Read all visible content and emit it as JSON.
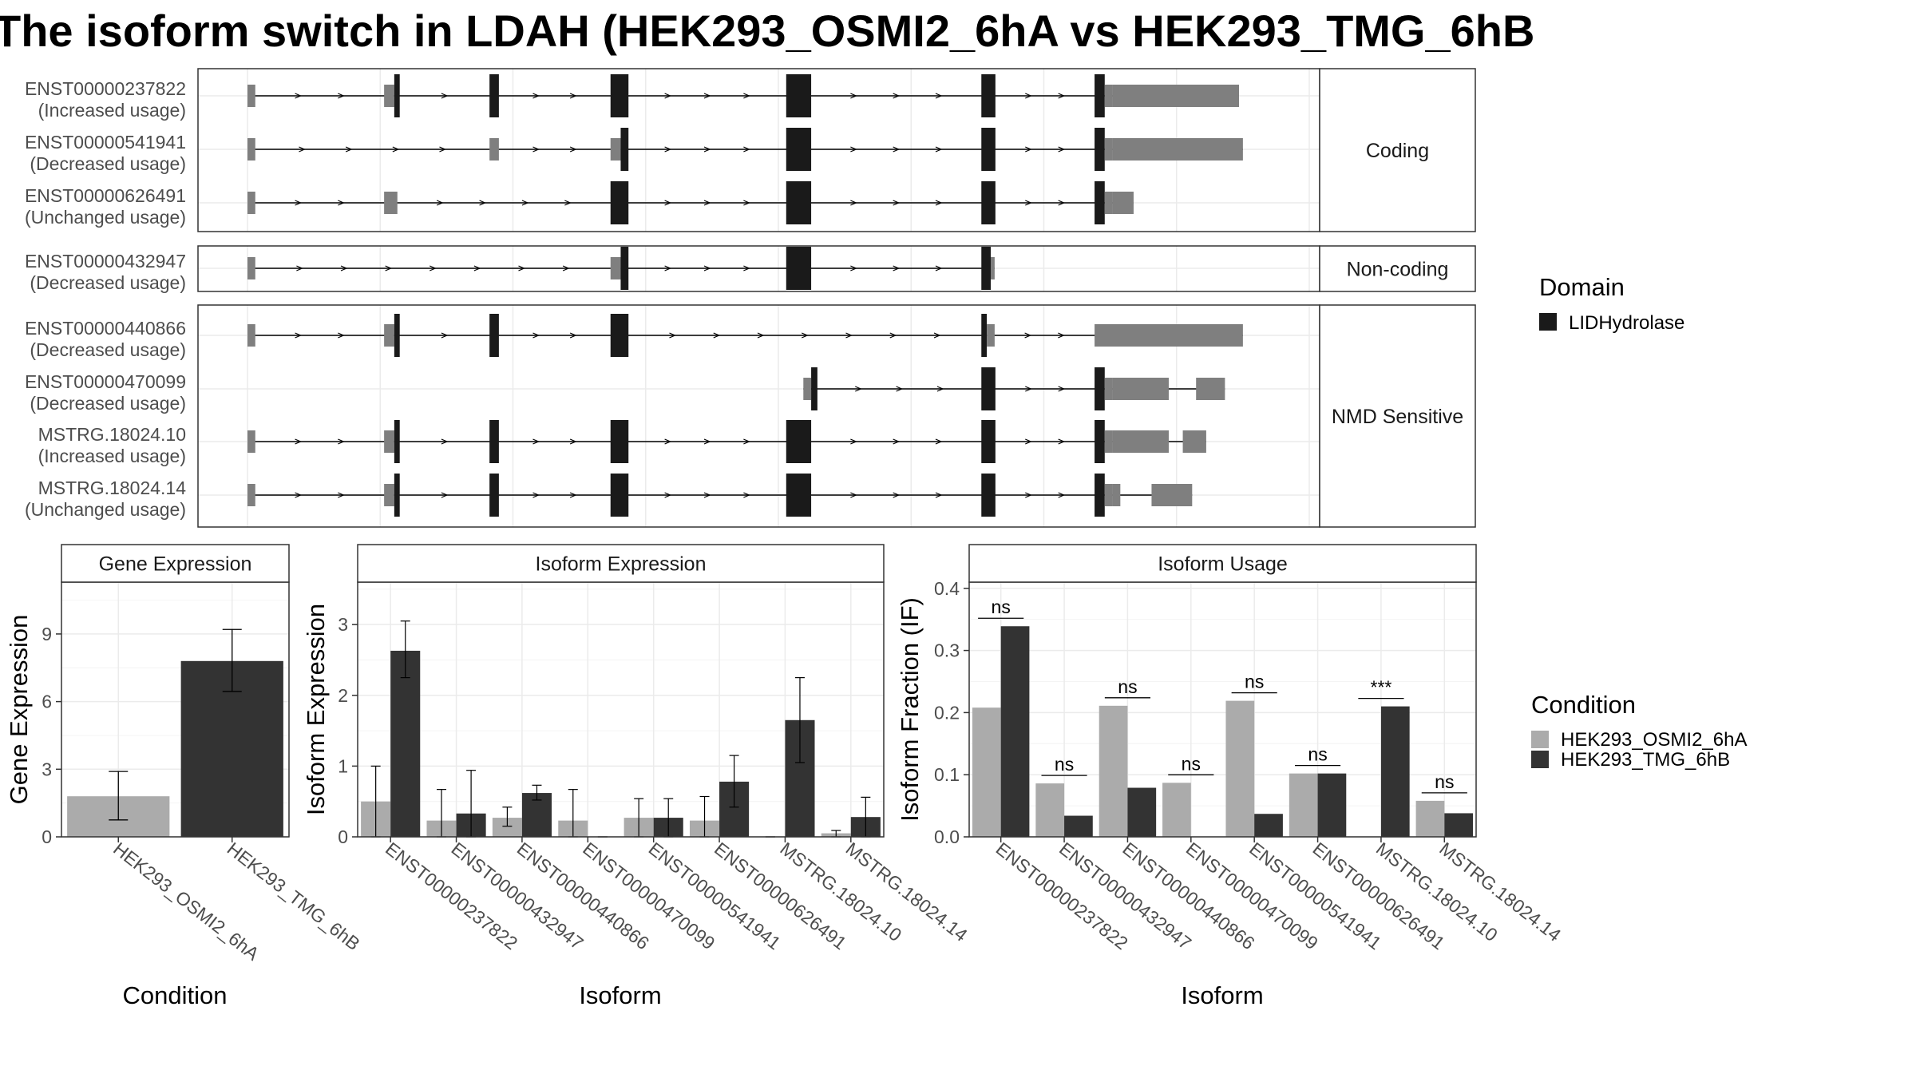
{
  "title": "The isoform switch in LDAH (HEK293_OSMI2_6hA vs HEK293_TMG_6hB",
  "colors": {
    "domain": "#1a1a1a",
    "utr": "#7f7f7f",
    "condition_a": "#ababab",
    "condition_b": "#333333",
    "grid": "#ebebeb",
    "strip_text": "#1a1a1a"
  },
  "isoform_structures": {
    "axis_max": 1360,
    "groups": [
      {
        "label": "Coding",
        "transcripts": [
          {
            "id": "ENST00000237822",
            "usage": "(Increased usage)",
            "exons": [
              [
                0,
                10,
                "utr"
              ],
              [
                175,
                188,
                "utr"
              ],
              [
                188,
                195,
                "domain"
              ],
              [
                310,
                322,
                "domain"
              ],
              [
                465,
                488,
                "domain"
              ],
              [
                690,
                722,
                "domain"
              ],
              [
                940,
                958,
                "domain"
              ],
              [
                1085,
                1098,
                "domain"
              ],
              [
                1098,
                1108,
                "utr"
              ],
              [
                1108,
                1270,
                "utr"
              ]
            ]
          },
          {
            "id": "ENST00000541941",
            "usage": "(Decreased usage)",
            "exons": [
              [
                0,
                10,
                "utr"
              ],
              [
                310,
                322,
                "utr"
              ],
              [
                465,
                478,
                "utr"
              ],
              [
                478,
                488,
                "domain"
              ],
              [
                690,
                722,
                "domain"
              ],
              [
                940,
                958,
                "domain"
              ],
              [
                1085,
                1098,
                "domain"
              ],
              [
                1098,
                1108,
                "utr"
              ],
              [
                1108,
                1275,
                "utr"
              ]
            ]
          },
          {
            "id": "ENST00000626491",
            "usage": "(Unchanged usage)",
            "exons": [
              [
                0,
                10,
                "utr"
              ],
              [
                175,
                192,
                "utr"
              ],
              [
                465,
                488,
                "domain"
              ],
              [
                690,
                722,
                "domain"
              ],
              [
                940,
                958,
                "domain"
              ],
              [
                1085,
                1098,
                "domain"
              ],
              [
                1098,
                1108,
                "utr"
              ],
              [
                1108,
                1135,
                "utr"
              ]
            ]
          }
        ]
      },
      {
        "label": "Non-coding",
        "transcripts": [
          {
            "id": "ENST00000432947",
            "usage": "(Decreased usage)",
            "exons": [
              [
                0,
                10,
                "utr"
              ],
              [
                465,
                478,
                "utr"
              ],
              [
                478,
                488,
                "domain"
              ],
              [
                690,
                722,
                "domain"
              ],
              [
                940,
                952,
                "domain"
              ],
              [
                952,
                957,
                "utr"
              ]
            ]
          }
        ]
      },
      {
        "label": "NMD Sensitive",
        "transcripts": [
          {
            "id": "ENST00000440866",
            "usage": "(Decreased usage)",
            "exons": [
              [
                0,
                10,
                "utr"
              ],
              [
                175,
                188,
                "utr"
              ],
              [
                188,
                195,
                "domain"
              ],
              [
                310,
                322,
                "domain"
              ],
              [
                465,
                488,
                "domain"
              ],
              [
                940,
                947,
                "domain"
              ],
              [
                947,
                957,
                "utr"
              ],
              [
                1085,
                1275,
                "utr"
              ]
            ]
          },
          {
            "id": "ENST00000470099",
            "usage": "(Decreased usage)",
            "exons": [
              [
                712,
                722,
                "utr"
              ],
              [
                722,
                730,
                "domain"
              ],
              [
                940,
                958,
                "domain"
              ],
              [
                1085,
                1098,
                "domain"
              ],
              [
                1098,
                1108,
                "utr"
              ],
              [
                1108,
                1180,
                "utr"
              ],
              [
                1215,
                1252,
                "utr"
              ]
            ]
          },
          {
            "id": "MSTRG.18024.10",
            "usage": "(Increased usage)",
            "exons": [
              [
                0,
                10,
                "utr"
              ],
              [
                175,
                188,
                "utr"
              ],
              [
                188,
                195,
                "domain"
              ],
              [
                310,
                322,
                "domain"
              ],
              [
                465,
                488,
                "domain"
              ],
              [
                690,
                722,
                "domain"
              ],
              [
                940,
                958,
                "domain"
              ],
              [
                1085,
                1098,
                "domain"
              ],
              [
                1098,
                1108,
                "utr"
              ],
              [
                1108,
                1180,
                "utr"
              ],
              [
                1198,
                1228,
                "utr"
              ]
            ]
          },
          {
            "id": "MSTRG.18024.14",
            "usage": "(Unchanged usage)",
            "exons": [
              [
                0,
                10,
                "utr"
              ],
              [
                175,
                188,
                "utr"
              ],
              [
                188,
                195,
                "domain"
              ],
              [
                310,
                322,
                "domain"
              ],
              [
                465,
                488,
                "domain"
              ],
              [
                690,
                722,
                "domain"
              ],
              [
                940,
                958,
                "domain"
              ],
              [
                1085,
                1098,
                "domain"
              ],
              [
                1098,
                1108,
                "utr"
              ],
              [
                1108,
                1118,
                "utr"
              ],
              [
                1158,
                1210,
                "utr"
              ]
            ]
          }
        ]
      }
    ]
  },
  "domain_legend": {
    "title": "Domain",
    "items": [
      {
        "label": "LIDHydrolase",
        "color_key": "domain"
      }
    ]
  },
  "condition_legend": {
    "title": "Condition",
    "items": [
      {
        "label": "HEK293_OSMI2_6hA",
        "color_key": "condition_a"
      },
      {
        "label": "HEK293_TMG_6hB",
        "color_key": "condition_b"
      }
    ]
  },
  "chart_data": [
    {
      "type": "bar",
      "title": "Gene Expression",
      "xlabel": "Condition",
      "ylabel": "Gene Expression",
      "ylim": [
        0,
        11.3
      ],
      "yticks": [
        0,
        3,
        6,
        9
      ],
      "categories": [
        "HEK293_OSMI2_6hA",
        "HEK293_TMG_6hB"
      ],
      "values": [
        1.8,
        7.8
      ],
      "errors": [
        [
          0.75,
          2.9
        ],
        [
          6.45,
          9.2
        ]
      ]
    },
    {
      "type": "bar",
      "title": "Isoform Expression",
      "xlabel": "Isoform",
      "ylabel": "Isoform Expression",
      "ylim": [
        0,
        3.6
      ],
      "yticks": [
        0,
        1,
        2,
        3
      ],
      "categories": [
        "ENST00000237822",
        "ENST00000432947",
        "ENST00000440866",
        "ENST00000470099",
        "ENST00000541941",
        "ENST00000626491",
        "MSTRG.18024.10",
        "MSTRG.18024.14"
      ],
      "series": [
        {
          "name": "HEK293_OSMI2_6hA",
          "values": [
            0.5,
            0.23,
            0.27,
            0.23,
            0.27,
            0.23,
            0.0,
            0.05
          ],
          "errors": [
            [
              0.0,
              1.0
            ],
            [
              0.0,
              0.67
            ],
            [
              0.15,
              0.42
            ],
            [
              0.0,
              0.67
            ],
            [
              0.0,
              0.54
            ],
            [
              0.0,
              0.57
            ],
            [
              0.0,
              0.0
            ],
            [
              0.0,
              0.09
            ]
          ]
        },
        {
          "name": "HEK293_TMG_6hB",
          "values": [
            2.63,
            0.33,
            0.62,
            0.0,
            0.27,
            0.78,
            1.65,
            0.28
          ],
          "errors": [
            [
              2.25,
              3.05
            ],
            [
              0.0,
              0.94
            ],
            [
              0.52,
              0.73
            ],
            [
              0.0,
              0.0
            ],
            [
              0.0,
              0.54
            ],
            [
              0.42,
              1.15
            ],
            [
              1.05,
              2.25
            ],
            [
              0.0,
              0.56
            ]
          ]
        }
      ]
    },
    {
      "type": "bar",
      "title": "Isoform Usage",
      "xlabel": "Isoform",
      "ylabel": "Isoform Fraction (IF)",
      "ylim": [
        0,
        0.41
      ],
      "yticks": [
        0.0,
        0.1,
        0.2,
        0.3,
        0.4
      ],
      "ytick_labels": [
        "0.0",
        "0.1",
        "0.2",
        "0.3",
        "0.4"
      ],
      "categories": [
        "ENST00000237822",
        "ENST00000432947",
        "ENST00000440866",
        "ENST00000470099",
        "ENST00000541941",
        "ENST00000626491",
        "MSTRG.18024.10",
        "MSTRG.18024.14"
      ],
      "series": [
        {
          "name": "HEK293_OSMI2_6hA",
          "values": [
            0.208,
            0.086,
            0.211,
            0.087,
            0.219,
            0.102,
            0.0,
            0.058
          ]
        },
        {
          "name": "HEK293_TMG_6hB",
          "values": [
            0.339,
            0.034,
            0.079,
            0.0,
            0.037,
            0.102,
            0.21,
            0.038
          ]
        }
      ],
      "significance": [
        "ns",
        "ns",
        "ns",
        "ns",
        "ns",
        "ns",
        "***",
        "ns"
      ]
    }
  ]
}
